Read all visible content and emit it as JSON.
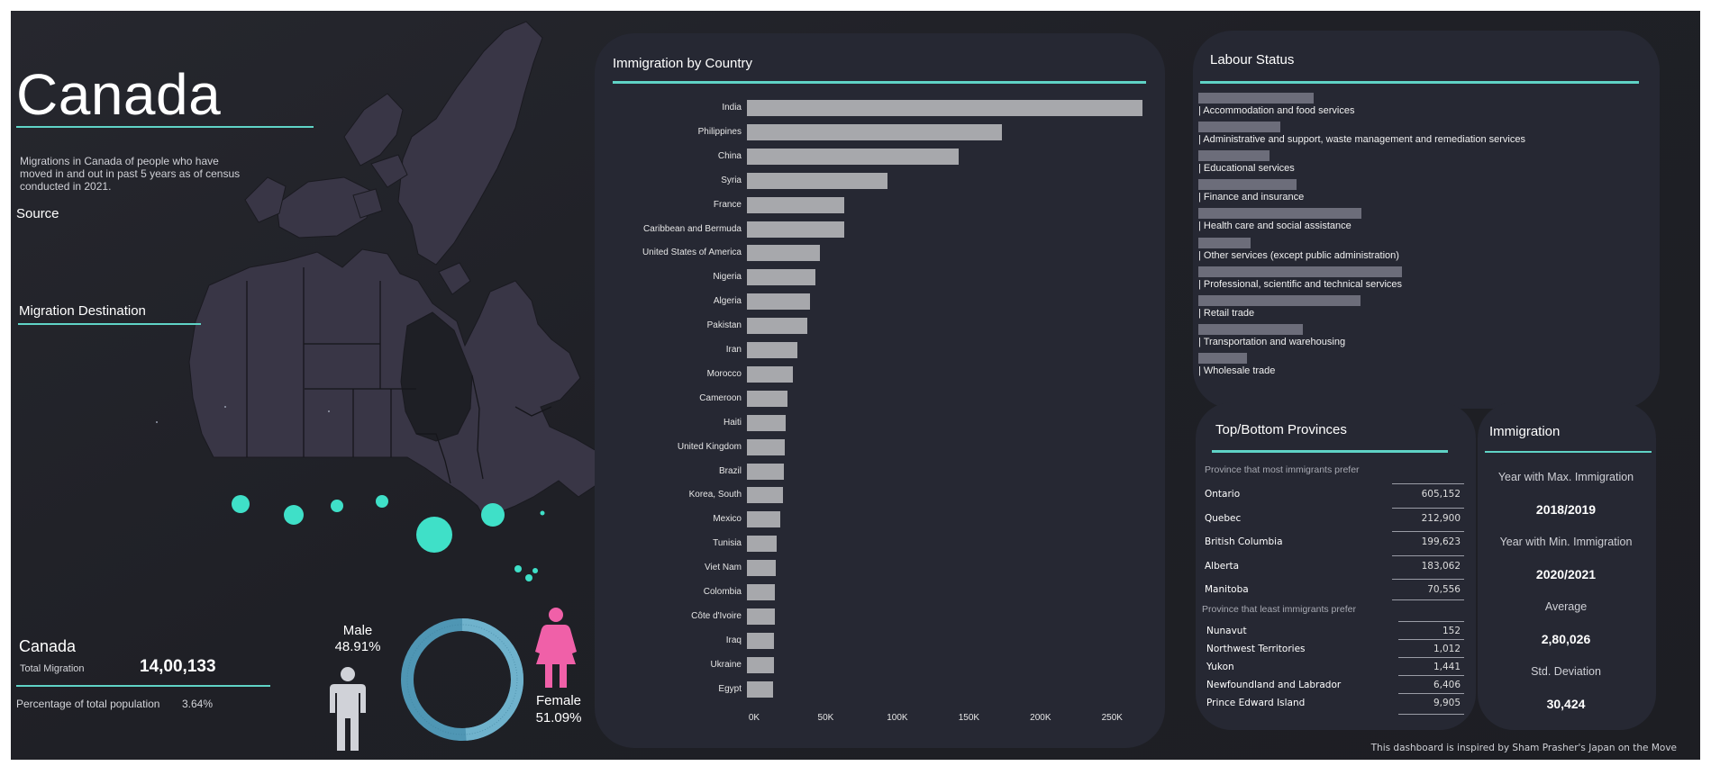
{
  "header": {
    "title": "Canada",
    "description": "Migrations in Canada of people who have moved in and out in past 5 years as of census conducted in 2021.",
    "source_link": "Source",
    "map_section": "Migration Destination"
  },
  "summary": {
    "region": "Canada",
    "total_label": "Total Migration",
    "total_value": "14,00,133",
    "pct_label": "Percentage of total population",
    "pct_value": "3.64%"
  },
  "gender": {
    "male_label": "Male",
    "male_pct": "48.91%",
    "female_label": "Female",
    "female_pct": "51.09%",
    "male_share": 48.91,
    "female_share": 51.09
  },
  "colors": {
    "accent": "#5fd3c6",
    "bubble": "#3fe0c8",
    "female": "#f060a8",
    "male": "#d0d2d8",
    "bar": "#a7a8ac",
    "labour_bar": "#6c6d7a"
  },
  "chart_data": [
    {
      "type": "bar",
      "orientation": "horizontal",
      "title": "Immigration by Country",
      "categories": [
        "India",
        "Philippines",
        "China",
        "Syria",
        "France",
        "Caribbean and Bermuda",
        "United States of America",
        "Nigeria",
        "Algeria",
        "Pakistan",
        "Iran",
        "Morocco",
        "Cameroon",
        "Haiti",
        "United Kingdom",
        "Brazil",
        "Korea, South",
        "Mexico",
        "Tunisia",
        "Viet Nam",
        "Colombia",
        "Côte d'Ivoire",
        "Iraq",
        "Ukraine",
        "Egypt"
      ],
      "values": [
        276000,
        178000,
        148000,
        98000,
        68000,
        68000,
        51000,
        48000,
        44000,
        42000,
        35000,
        32000,
        28000,
        27000,
        26500,
        26000,
        25000,
        23000,
        21000,
        20000,
        19500,
        19500,
        19000,
        19000,
        18500
      ],
      "x_ticks": [
        "0K",
        "50K",
        "100K",
        "150K",
        "200K",
        "250K"
      ],
      "xlim": [
        0,
        280000
      ]
    },
    {
      "type": "bar",
      "orientation": "horizontal",
      "title": "Labour Status",
      "categories": [
        "Accommodation and food services",
        "Administrative and support, waste management and remediation services",
        "Educational services",
        "Finance and insurance",
        "Health care and social assistance",
        "Other services (except public administration)",
        "Professional, scientific and technical services",
        "Retail trade",
        "Transportation and warehousing",
        "Wholesale trade"
      ],
      "values": [
        86,
        61,
        53,
        73,
        122,
        39,
        152,
        121,
        78,
        36
      ],
      "xlim": [
        0,
        160
      ]
    }
  ],
  "provinces": {
    "title": "Top/Bottom Provinces",
    "top_label": "Province that most immigrants prefer",
    "top": [
      {
        "name": "Ontario",
        "value": "605,152"
      },
      {
        "name": "Quebec",
        "value": "212,900"
      },
      {
        "name": "British Columbia",
        "value": "199,623"
      },
      {
        "name": "Alberta",
        "value": "183,062"
      },
      {
        "name": "Manitoba",
        "value": "70,556"
      }
    ],
    "bottom_label": "Province that least immigrants prefer",
    "bottom": [
      {
        "name": "Nunavut",
        "value": "152"
      },
      {
        "name": "Northwest Territories",
        "value": "1,012"
      },
      {
        "name": "Yukon",
        "value": "1,441"
      },
      {
        "name": "Newfoundland and Labrador",
        "value": "6,406"
      },
      {
        "name": "Prince Edward Island",
        "value": "9,905"
      }
    ]
  },
  "immigration": {
    "title": "Immigration",
    "max_label": "Year with Max. Immigration",
    "max_value": "2018/2019",
    "min_label": "Year with Min. Immigration",
    "min_value": "2020/2021",
    "avg_label": "Average",
    "avg_value": "2,80,026",
    "std_label": "Std. Deviation",
    "std_value": "30,424"
  },
  "footer": "This dashboard is inspired by Sham Prasher's Japan on the Move"
}
